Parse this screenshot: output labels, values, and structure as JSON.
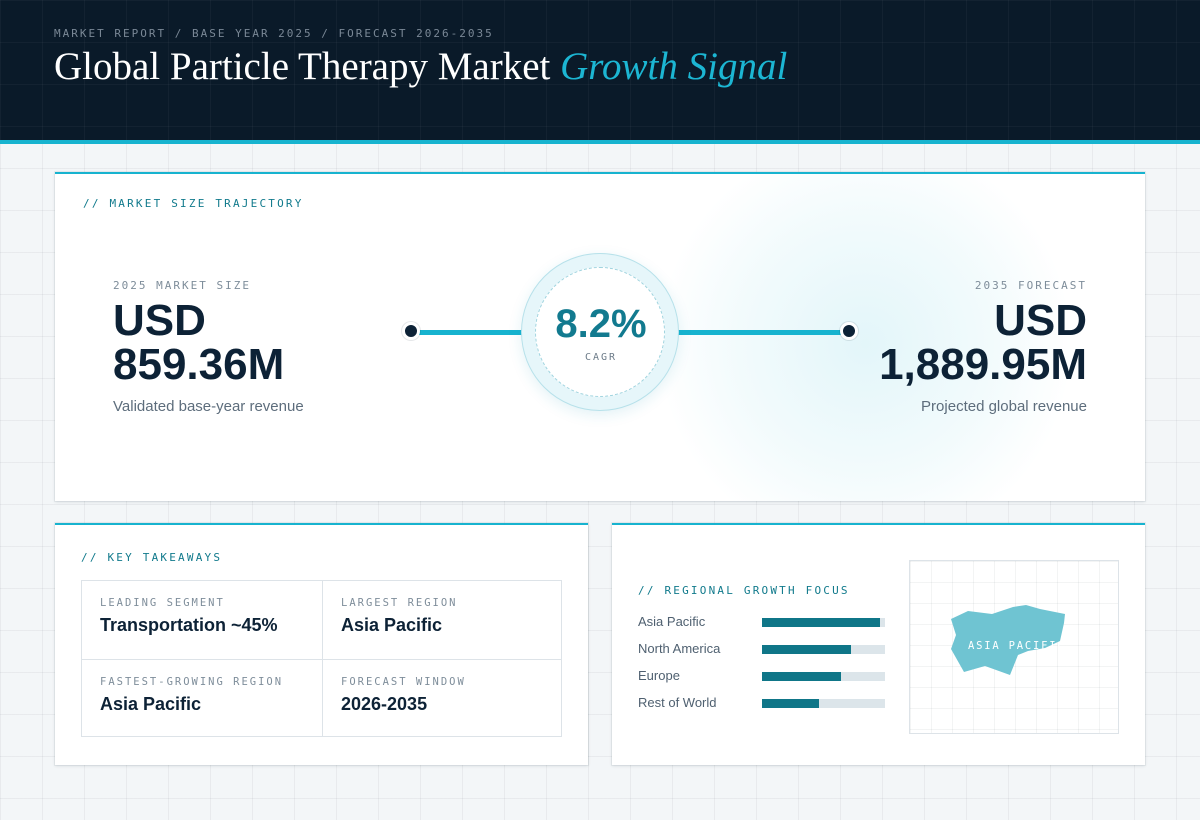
{
  "header": {
    "breadcrumb": "MARKET REPORT / BASE YEAR 2025 / FORECAST 2026-2035",
    "title_main": "Global Particle Therapy Market",
    "title_accent": "Growth Signal"
  },
  "trajectory": {
    "section_title": "// MARKET SIZE TRAJECTORY",
    "base": {
      "label": "2025 MARKET SIZE",
      "currency": "USD",
      "value": "859.36M",
      "description": "Validated base-year revenue"
    },
    "forecast": {
      "label": "2035 FORECAST",
      "currency": "USD",
      "value": "1,889.95M",
      "description": "Projected global revenue"
    },
    "cagr": {
      "value": "8.2%",
      "label": "CAGR"
    }
  },
  "takeaways": {
    "section_title": "// KEY TAKEAWAYS",
    "items": [
      {
        "label": "LEADING SEGMENT",
        "value": "Transportation ~45%"
      },
      {
        "label": "LARGEST REGION",
        "value": "Asia Pacific"
      },
      {
        "label": "FASTEST-GROWING REGION",
        "value": "Asia Pacific"
      },
      {
        "label": "FORECAST WINDOW",
        "value": "2026-2035"
      }
    ]
  },
  "regional": {
    "section_title": "// REGIONAL GROWTH FOCUS",
    "regions": [
      {
        "name": "Asia Pacific",
        "share": 0.96
      },
      {
        "name": "North America",
        "share": 0.72
      },
      {
        "name": "Europe",
        "share": 0.64
      },
      {
        "name": "Rest of World",
        "share": 0.46
      }
    ],
    "map_label": "ASIA PACIFIC",
    "map_color": "#6fc4d2"
  },
  "colors": {
    "accent": "#17b3cf",
    "header_bg": "#0a1a29",
    "bar_fill": "#0f7688",
    "bar_track": "#dce5ea"
  }
}
